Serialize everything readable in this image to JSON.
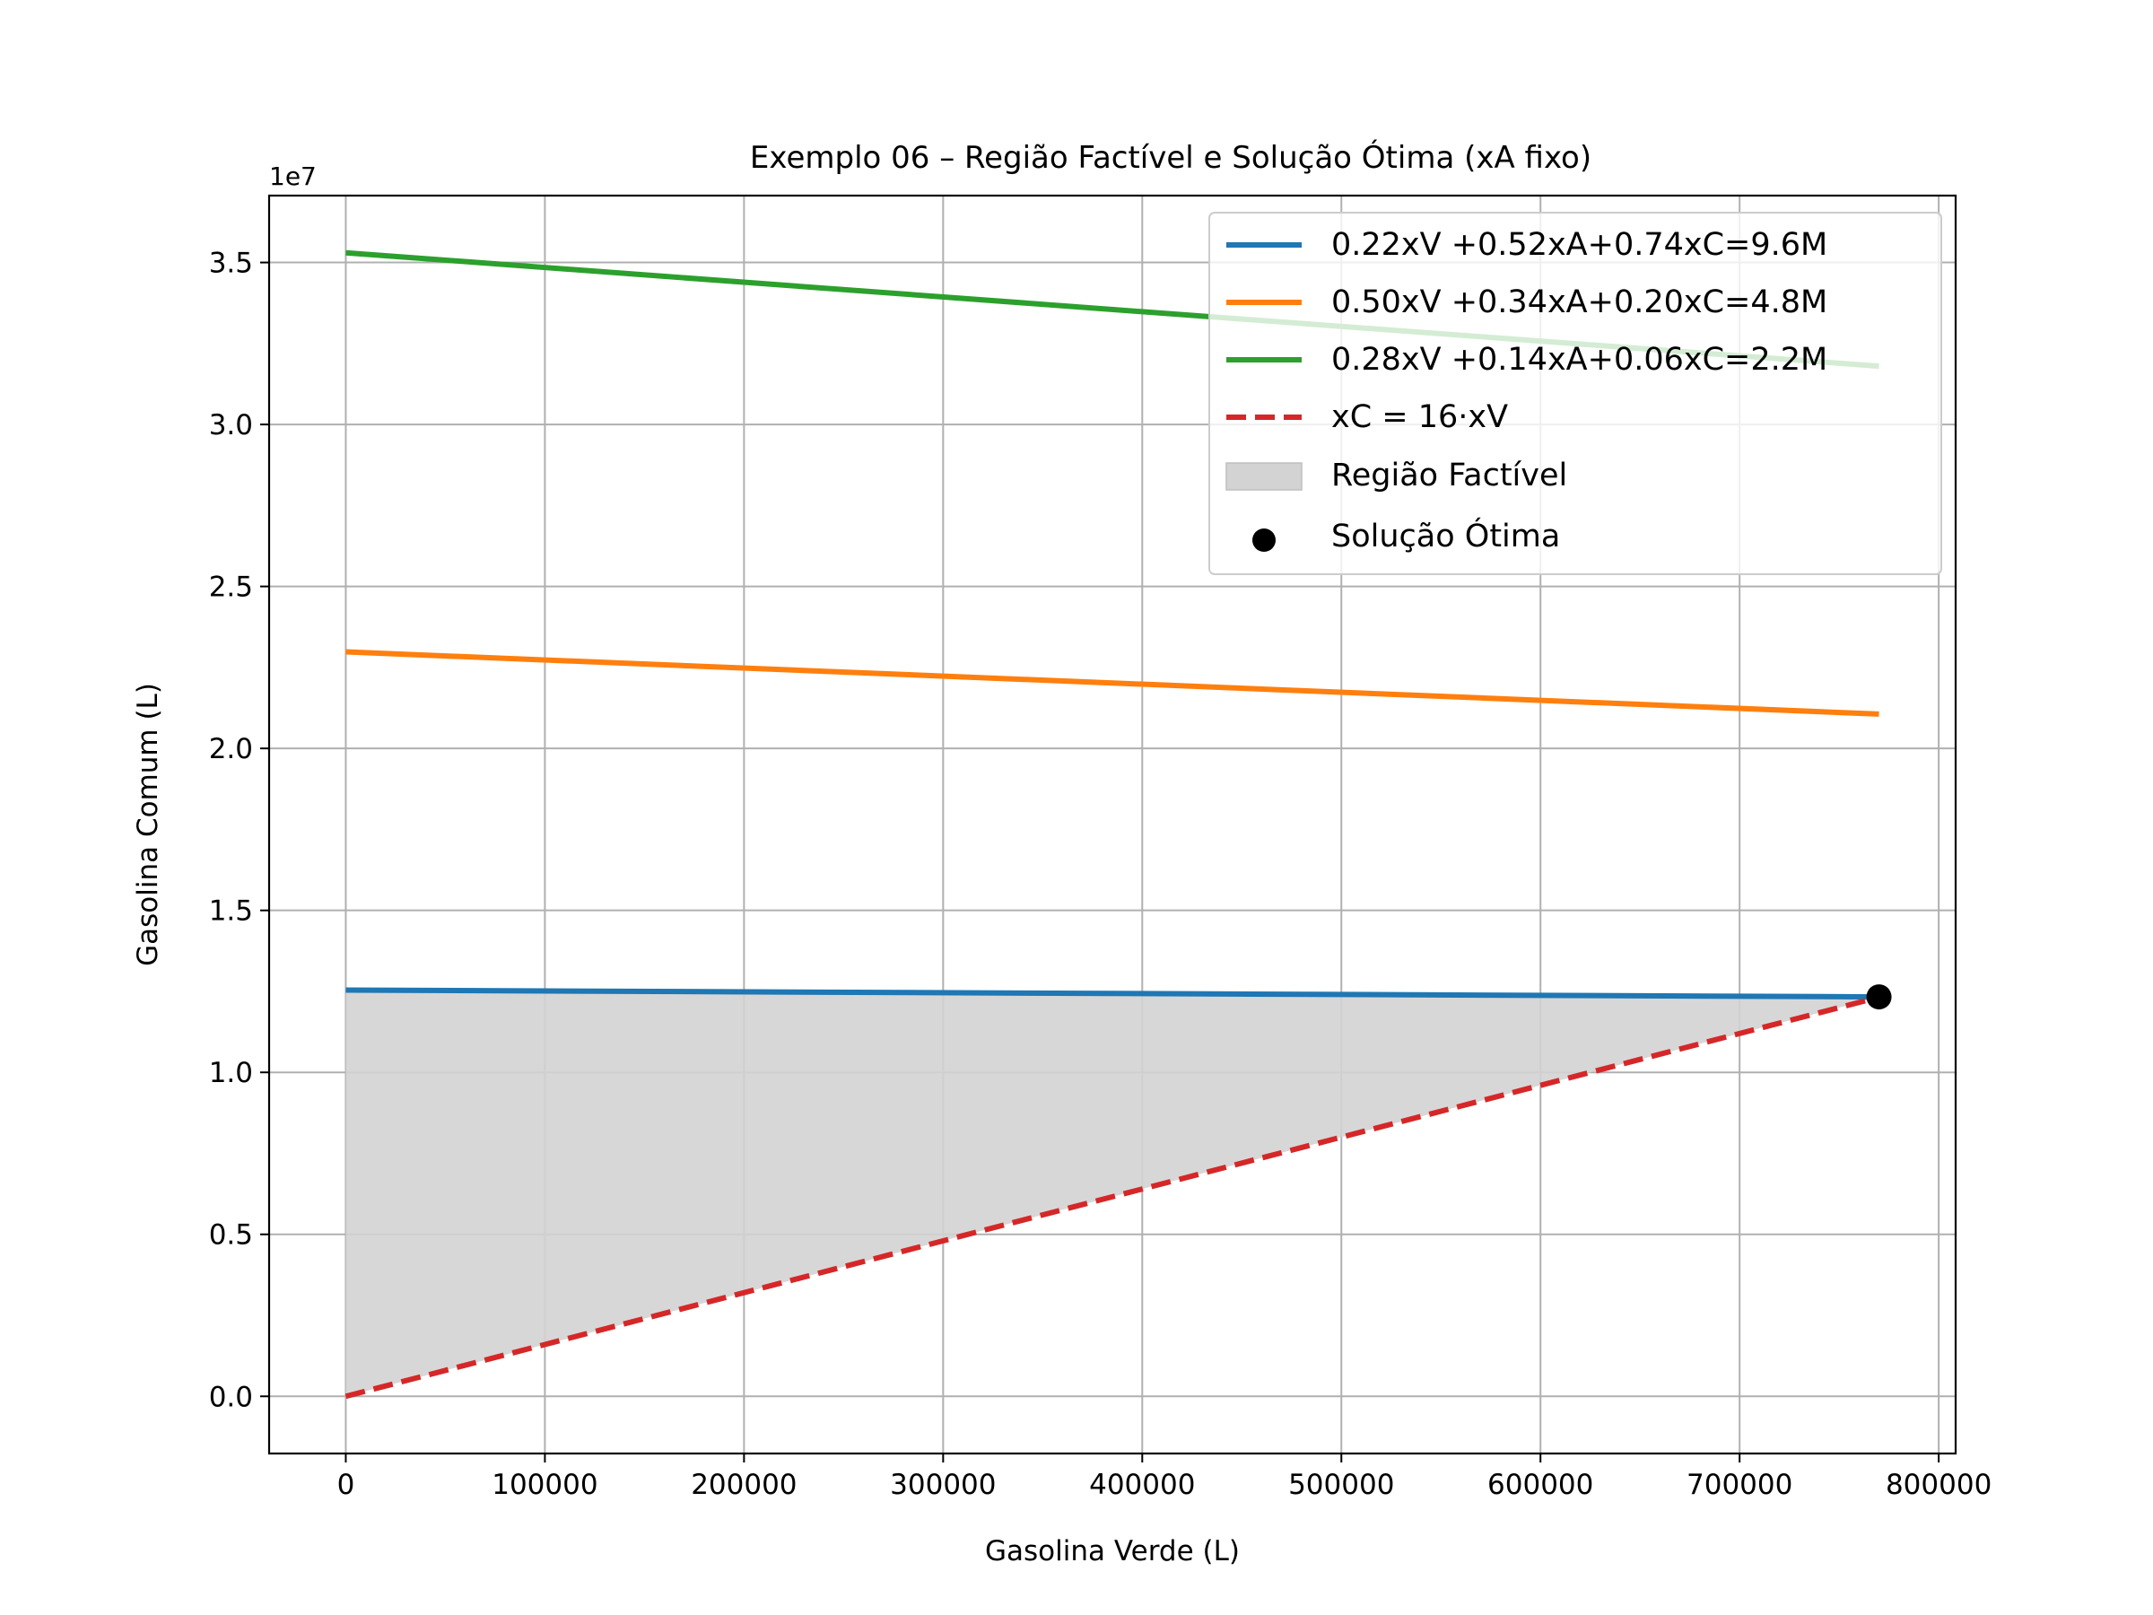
{
  "chart_data": {
    "type": "line",
    "title": "Exemplo 06 – Região Factível e Solução Ótima (xA fixo)",
    "xlabel": "Gasolina Verde (L)",
    "ylabel": "Gasolina Comum (L)",
    "y_offset_label": "1e7",
    "xlim": [
      -38500,
      808500
    ],
    "ylim": [
      -1765000,
      37065000
    ],
    "xticks": [
      0,
      100000,
      200000,
      300000,
      400000,
      500000,
      600000,
      700000,
      800000
    ],
    "xtick_labels": [
      "0",
      "100000",
      "200000",
      "300000",
      "400000",
      "500000",
      "600000",
      "700000",
      "800000"
    ],
    "yticks": [
      0,
      5000000,
      10000000,
      15000000,
      20000000,
      25000000,
      30000000,
      35000000
    ],
    "ytick_labels": [
      "0.0",
      "0.5",
      "1.0",
      "1.5",
      "2.0",
      "2.5",
      "3.0",
      "3.5"
    ],
    "grid": true,
    "legend_placement": "upper right",
    "series": [
      {
        "name": "0.22xV +0.52xA+0.74xC=9.6M",
        "kind": "line",
        "color": "#1f77b4",
        "x": [
          0,
          770000
        ],
        "y": [
          12540000,
          12330000
        ]
      },
      {
        "name": "0.50xV +0.34xA+0.20xC=4.8M",
        "kind": "line",
        "color": "#ff7f0e",
        "x": [
          0,
          770000
        ],
        "y": [
          22980000,
          21060000
        ]
      },
      {
        "name": "0.28xV +0.14xA+0.06xC=2.2M",
        "kind": "line",
        "color": "#2ca02c",
        "x": [
          0,
          770000
        ],
        "y": [
          35300000,
          31800000
        ]
      },
      {
        "name": "xC = 16·xV",
        "kind": "dashed",
        "color": "#d62728",
        "x": [
          0,
          770000
        ],
        "y": [
          0,
          12320000
        ]
      }
    ],
    "region": {
      "name": "Região Factível",
      "color": "#d3d3d3",
      "x": [
        0,
        770000
      ],
      "upper": [
        12540000,
        12330000
      ],
      "lower": [
        0,
        12320000
      ]
    },
    "optimum": {
      "name": "Solução Ótima",
      "color": "#000000",
      "x": 770000,
      "y": 12330000
    }
  }
}
